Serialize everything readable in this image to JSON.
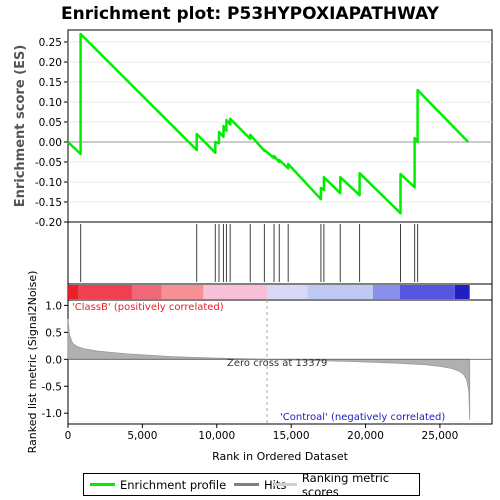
{
  "chart_data": {
    "type": "line",
    "title": "Enrichment plot: P53HYPOXIAPATHWAY",
    "es_panel": {
      "ylabel": "Enrichment score (ES)",
      "ylim": [
        -0.2,
        0.28
      ],
      "yticks": [
        -0.2,
        -0.15,
        -0.1,
        -0.05,
        0.0,
        0.05,
        0.1,
        0.15,
        0.2,
        0.25
      ],
      "ytick_labels": [
        "-0.20",
        "-0.15",
        "-0.10",
        "-0.05",
        "0.00",
        "0.05",
        "0.10",
        "0.15",
        "0.20",
        "0.25"
      ],
      "series": [
        {
          "name": "Enrichment profile",
          "color": "#00ee00",
          "x": [
            0,
            850,
            850,
            8650,
            8650,
            9900,
            9900,
            10150,
            10150,
            10450,
            10450,
            10650,
            10650,
            10900,
            10900,
            12250,
            12250,
            13200,
            13200,
            13850,
            13850,
            14200,
            14200,
            14800,
            14800,
            17000,
            17000,
            17200,
            17200,
            18300,
            18300,
            19600,
            19600,
            22350,
            22350,
            23300,
            23300,
            23500,
            23500,
            26900
          ],
          "y": [
            0.0,
            -0.03,
            0.27,
            -0.02,
            0.02,
            -0.027,
            0.0,
            -0.003,
            0.025,
            0.013,
            0.04,
            0.028,
            0.055,
            0.044,
            0.058,
            0.008,
            0.018,
            -0.022,
            -0.02,
            -0.04,
            -0.035,
            -0.05,
            -0.045,
            -0.066,
            -0.055,
            -0.143,
            -0.115,
            -0.12,
            -0.088,
            -0.128,
            -0.088,
            -0.133,
            -0.078,
            -0.178,
            -0.08,
            -0.113,
            0.01,
            0.0,
            0.13,
            0.0
          ]
        }
      ]
    },
    "hits": [
      850,
      8650,
      9900,
      10150,
      10450,
      10650,
      10900,
      12250,
      13200,
      13850,
      14200,
      14800,
      17000,
      17200,
      18300,
      19600,
      22350,
      23300,
      23500
    ],
    "ranking_bar": {
      "segments": [
        {
          "x0": 0,
          "x1": 700,
          "color": "#e8202a"
        },
        {
          "x0": 700,
          "x1": 4300,
          "color": "#f04050"
        },
        {
          "x0": 4300,
          "x1": 6300,
          "color": "#f06878"
        },
        {
          "x0": 6300,
          "x1": 9100,
          "color": "#f59095"
        },
        {
          "x0": 9100,
          "x1": 13400,
          "color": "#f8c0d8"
        },
        {
          "x0": 13400,
          "x1": 16100,
          "color": "#d8d8f8"
        },
        {
          "x0": 16100,
          "x1": 20500,
          "color": "#c0c8f4"
        },
        {
          "x0": 20500,
          "x1": 22300,
          "color": "#8890ec"
        },
        {
          "x0": 22300,
          "x1": 26000,
          "color": "#5555e0"
        },
        {
          "x0": 26000,
          "x1": 27000,
          "color": "#2020c0"
        }
      ]
    },
    "metric_panel": {
      "ylabel": "Ranked list metric (Signal2Noise)",
      "xlabel": "Rank in Ordered Dataset",
      "ylim": [
        -1.2,
        1.1
      ],
      "yticks": [
        -1.0,
        -0.5,
        0.0,
        0.5,
        1.0
      ],
      "ytick_labels": [
        "-1.0",
        "-0.5",
        "0.0",
        "0.5",
        "1.0"
      ],
      "xlim": [
        0,
        28500
      ],
      "xticks": [
        0,
        5000,
        10000,
        15000,
        20000,
        25000
      ],
      "xtick_labels": [
        "0",
        "5,000",
        "10,000",
        "15,000",
        "20,000",
        "25,000"
      ],
      "fill_color": "#b0b0b0",
      "curve_x": [
        0,
        100,
        300,
        600,
        1000,
        2000,
        4000,
        7000,
        10000,
        13379,
        16000,
        19000,
        22000,
        24000,
        25000,
        25800,
        26300,
        26600,
        26800,
        26950,
        27000
      ],
      "curve_y": [
        0.75,
        0.45,
        0.3,
        0.24,
        0.2,
        0.15,
        0.1,
        0.05,
        0.02,
        0.0,
        -0.02,
        -0.04,
        -0.07,
        -0.1,
        -0.13,
        -0.17,
        -0.22,
        -0.28,
        -0.38,
        -0.6,
        -1.12
      ],
      "annotations": {
        "pos_label": "'ClassB' (positively correlated)",
        "pos_color": "#e8202a",
        "neg_label": "'Controal' (negatively correlated)",
        "neg_color": "#2020c0",
        "zero_cross_label": "Zero cross at 13379",
        "zero_cross_x": 13379
      }
    },
    "xmax": 27000,
    "legend": [
      {
        "label": "Enrichment profile",
        "color": "#00ee00"
      },
      {
        "label": "Hits",
        "color": "#808080"
      },
      {
        "label": "Ranking metric scores",
        "color": "#d0d0d0"
      }
    ]
  }
}
